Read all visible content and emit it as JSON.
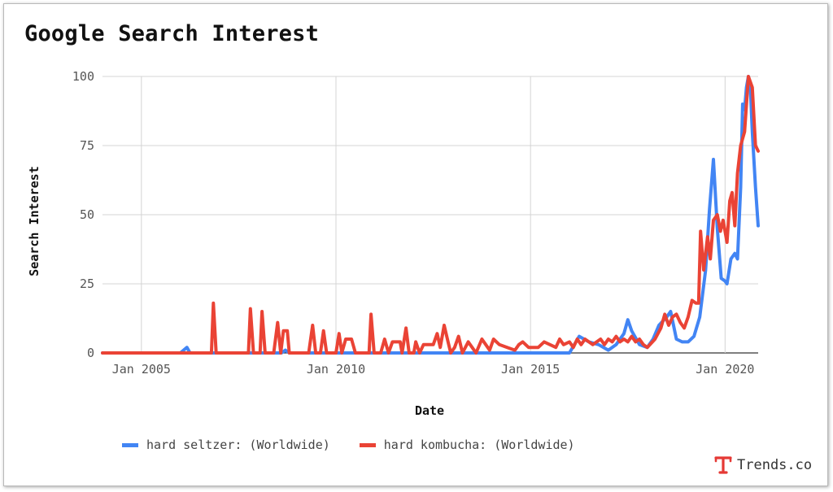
{
  "title": "Google Search Interest",
  "brand": {
    "text": "Trends.co",
    "color": "#e53935"
  },
  "chart_data": {
    "type": "line",
    "xlabel": "Date",
    "ylabel": "Search Interest",
    "xlim": [
      2004.0,
      2020.85
    ],
    "ylim": [
      0,
      100
    ],
    "y_ticks": [
      0,
      25,
      50,
      75,
      100
    ],
    "x_ticks": [
      {
        "value": 2005,
        "label": "Jan 2005"
      },
      {
        "value": 2010,
        "label": "Jan 2010"
      },
      {
        "value": 2015,
        "label": "Jan 2015"
      },
      {
        "value": 2020,
        "label": "Jan 2020"
      }
    ],
    "grid": true,
    "legend_position": "bottom",
    "series": [
      {
        "name": "hard seltzer: (Worldwide)",
        "color": "#4285f4",
        "points": [
          [
            2004.0,
            0
          ],
          [
            2006.0,
            0
          ],
          [
            2006.17,
            2
          ],
          [
            2006.25,
            0
          ],
          [
            2008.6,
            0
          ],
          [
            2008.7,
            1
          ],
          [
            2008.8,
            0
          ],
          [
            2010.0,
            0
          ],
          [
            2016.0,
            0
          ],
          [
            2016.25,
            6
          ],
          [
            2016.5,
            4
          ],
          [
            2016.75,
            3
          ],
          [
            2017.0,
            1
          ],
          [
            2017.2,
            3
          ],
          [
            2017.4,
            7
          ],
          [
            2017.5,
            12
          ],
          [
            2017.6,
            8
          ],
          [
            2017.8,
            3
          ],
          [
            2018.0,
            2
          ],
          [
            2018.15,
            5
          ],
          [
            2018.3,
            10
          ],
          [
            2018.5,
            13
          ],
          [
            2018.6,
            15
          ],
          [
            2018.75,
            5
          ],
          [
            2018.9,
            4
          ],
          [
            2019.05,
            4
          ],
          [
            2019.2,
            6
          ],
          [
            2019.35,
            13
          ],
          [
            2019.5,
            30
          ],
          [
            2019.6,
            52
          ],
          [
            2019.7,
            70
          ],
          [
            2019.8,
            45
          ],
          [
            2019.9,
            27
          ],
          [
            2020.0,
            26
          ],
          [
            2020.05,
            25
          ],
          [
            2020.15,
            34
          ],
          [
            2020.25,
            36
          ],
          [
            2020.32,
            34
          ],
          [
            2020.4,
            60
          ],
          [
            2020.45,
            90
          ],
          [
            2020.5,
            88
          ],
          [
            2020.55,
            96
          ],
          [
            2020.6,
            100
          ],
          [
            2020.65,
            96
          ],
          [
            2020.7,
            80
          ],
          [
            2020.78,
            60
          ],
          [
            2020.85,
            46
          ]
        ]
      },
      {
        "name": "hard kombucha: (Worldwide)",
        "color": "#ea4335",
        "points": [
          [
            2004.0,
            0
          ],
          [
            2006.8,
            0
          ],
          [
            2006.85,
            18
          ],
          [
            2006.92,
            0
          ],
          [
            2007.75,
            0
          ],
          [
            2007.8,
            16
          ],
          [
            2007.88,
            0
          ],
          [
            2008.05,
            0
          ],
          [
            2008.1,
            15
          ],
          [
            2008.18,
            0
          ],
          [
            2008.4,
            0
          ],
          [
            2008.5,
            11
          ],
          [
            2008.58,
            0
          ],
          [
            2008.65,
            8
          ],
          [
            2008.75,
            8
          ],
          [
            2008.8,
            0
          ],
          [
            2009.3,
            0
          ],
          [
            2009.4,
            10
          ],
          [
            2009.48,
            0
          ],
          [
            2009.6,
            0
          ],
          [
            2009.68,
            8
          ],
          [
            2009.76,
            0
          ],
          [
            2010.0,
            0
          ],
          [
            2010.08,
            7
          ],
          [
            2010.15,
            0
          ],
          [
            2010.25,
            5
          ],
          [
            2010.4,
            5
          ],
          [
            2010.5,
            0
          ],
          [
            2010.85,
            0
          ],
          [
            2010.9,
            14
          ],
          [
            2010.98,
            0
          ],
          [
            2011.15,
            0
          ],
          [
            2011.25,
            5
          ],
          [
            2011.35,
            0
          ],
          [
            2011.45,
            4
          ],
          [
            2011.65,
            4
          ],
          [
            2011.7,
            0
          ],
          [
            2011.8,
            9
          ],
          [
            2011.88,
            0
          ],
          [
            2012.0,
            0
          ],
          [
            2012.05,
            4
          ],
          [
            2012.15,
            0
          ],
          [
            2012.25,
            3
          ],
          [
            2012.5,
            3
          ],
          [
            2012.6,
            7
          ],
          [
            2012.68,
            2
          ],
          [
            2012.78,
            10
          ],
          [
            2012.88,
            4
          ],
          [
            2012.95,
            0
          ],
          [
            2013.05,
            2
          ],
          [
            2013.15,
            6
          ],
          [
            2013.25,
            0
          ],
          [
            2013.4,
            4
          ],
          [
            2013.5,
            2
          ],
          [
            2013.6,
            0
          ],
          [
            2013.75,
            5
          ],
          [
            2013.85,
            3
          ],
          [
            2013.95,
            1
          ],
          [
            2014.05,
            5
          ],
          [
            2014.2,
            3
          ],
          [
            2014.4,
            2
          ],
          [
            2014.6,
            1
          ],
          [
            2014.7,
            3
          ],
          [
            2014.8,
            4
          ],
          [
            2014.95,
            2
          ],
          [
            2015.2,
            2
          ],
          [
            2015.35,
            4
          ],
          [
            2015.5,
            3
          ],
          [
            2015.65,
            2
          ],
          [
            2015.75,
            5
          ],
          [
            2015.85,
            3
          ],
          [
            2016.0,
            4
          ],
          [
            2016.1,
            2
          ],
          [
            2016.2,
            5
          ],
          [
            2016.3,
            3
          ],
          [
            2016.4,
            5
          ],
          [
            2016.5,
            4
          ],
          [
            2016.6,
            3
          ],
          [
            2016.7,
            4
          ],
          [
            2016.8,
            5
          ],
          [
            2016.9,
            3
          ],
          [
            2017.0,
            5
          ],
          [
            2017.1,
            4
          ],
          [
            2017.2,
            6
          ],
          [
            2017.3,
            4
          ],
          [
            2017.4,
            5
          ],
          [
            2017.5,
            4
          ],
          [
            2017.6,
            6
          ],
          [
            2017.7,
            4
          ],
          [
            2017.8,
            5
          ],
          [
            2017.9,
            3
          ],
          [
            2018.0,
            2
          ],
          [
            2018.2,
            5
          ],
          [
            2018.35,
            9
          ],
          [
            2018.45,
            14
          ],
          [
            2018.55,
            10
          ],
          [
            2018.65,
            13
          ],
          [
            2018.75,
            14
          ],
          [
            2018.85,
            11
          ],
          [
            2018.95,
            9
          ],
          [
            2019.05,
            13
          ],
          [
            2019.15,
            19
          ],
          [
            2019.25,
            18
          ],
          [
            2019.32,
            18
          ],
          [
            2019.37,
            44
          ],
          [
            2019.45,
            30
          ],
          [
            2019.55,
            42
          ],
          [
            2019.62,
            34
          ],
          [
            2019.7,
            48
          ],
          [
            2019.8,
            50
          ],
          [
            2019.88,
            44
          ],
          [
            2019.95,
            48
          ],
          [
            2020.05,
            40
          ],
          [
            2020.12,
            55
          ],
          [
            2020.18,
            58
          ],
          [
            2020.25,
            46
          ],
          [
            2020.32,
            65
          ],
          [
            2020.4,
            75
          ],
          [
            2020.5,
            80
          ],
          [
            2020.6,
            100
          ],
          [
            2020.7,
            96
          ],
          [
            2020.78,
            75
          ],
          [
            2020.85,
            73
          ]
        ]
      }
    ]
  }
}
